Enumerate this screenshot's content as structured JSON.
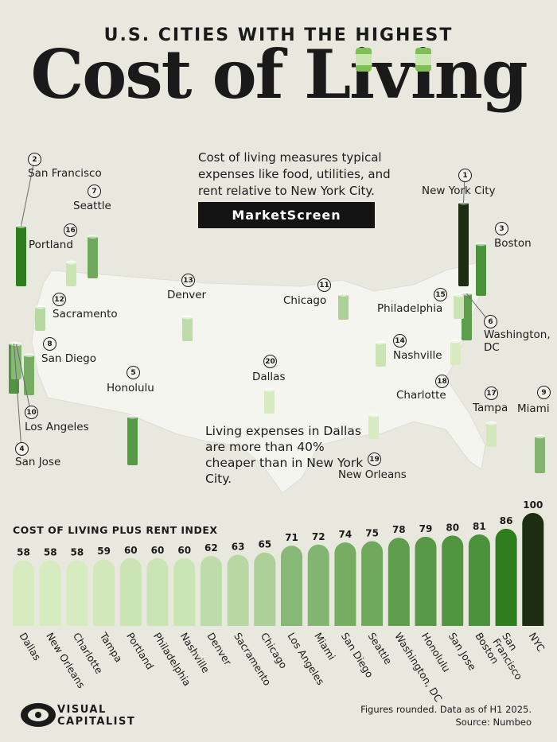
{
  "header": {
    "supertitle": "U.S. CITIES WITH THE HIGHEST",
    "title": "Cost of Living"
  },
  "intro_text": "Cost of living measures typical expenses like food, utilities, and rent relative to New York City.",
  "brand": "MarketScreen",
  "callout_text": "Living expenses in Dallas are more than 40% cheaper than in New York City.",
  "map": {
    "cities": [
      {
        "rank": "1",
        "name": "New York City"
      },
      {
        "rank": "2",
        "name": "San Francisco"
      },
      {
        "rank": "3",
        "name": "Boston"
      },
      {
        "rank": "4",
        "name": "San Jose"
      },
      {
        "rank": "5",
        "name": "Honolulu"
      },
      {
        "rank": "6",
        "name": "Washington, DC"
      },
      {
        "rank": "7",
        "name": "Seattle"
      },
      {
        "rank": "8",
        "name": "San Diego"
      },
      {
        "rank": "9",
        "name": "Miami"
      },
      {
        "rank": "10",
        "name": "Los Angeles"
      },
      {
        "rank": "11",
        "name": "Chicago"
      },
      {
        "rank": "12",
        "name": "Sacramento"
      },
      {
        "rank": "13",
        "name": "Denver"
      },
      {
        "rank": "14",
        "name": "Nashville"
      },
      {
        "rank": "15",
        "name": "Philadelphia"
      },
      {
        "rank": "16",
        "name": "Portland"
      },
      {
        "rank": "17",
        "name": "Tampa"
      },
      {
        "rank": "18",
        "name": "Charlotte"
      },
      {
        "rank": "19",
        "name": "New Orleans"
      },
      {
        "rank": "20",
        "name": "Dallas"
      }
    ]
  },
  "chart_data": {
    "type": "bar",
    "title": "COST OF LIVING PLUS RENT INDEX",
    "categories": [
      "Dallas",
      "New Orleans",
      "Charlotte",
      "Tampa",
      "Portland",
      "Philadelphia",
      "Nashville",
      "Denver",
      "Sacramento",
      "Chicago",
      "Los Angeles",
      "Miami",
      "San Diego",
      "Seattle",
      "Washington, DC",
      "Honolulu",
      "San Jose",
      "Boston",
      "San Francisco",
      "NYC"
    ],
    "values": [
      58,
      58,
      58,
      59,
      60,
      60,
      60,
      62,
      63,
      65,
      71,
      72,
      74,
      75,
      78,
      79,
      80,
      81,
      86,
      100
    ],
    "ylim": [
      0,
      100
    ],
    "xlabel": "",
    "ylabel": ""
  },
  "colors": {
    "background": "#e9e8df",
    "low": "#d6ecc0",
    "high": "#2e7d1e",
    "top": "#1d2d12",
    "map_fill": "#f5f5f0"
  },
  "footer": {
    "note_line1": "Figures rounded. Data as of H1 2025.",
    "note_line2": "Source: Numbeo",
    "logo_line1": "VISUAL",
    "logo_line2": "CAPITALIST"
  }
}
